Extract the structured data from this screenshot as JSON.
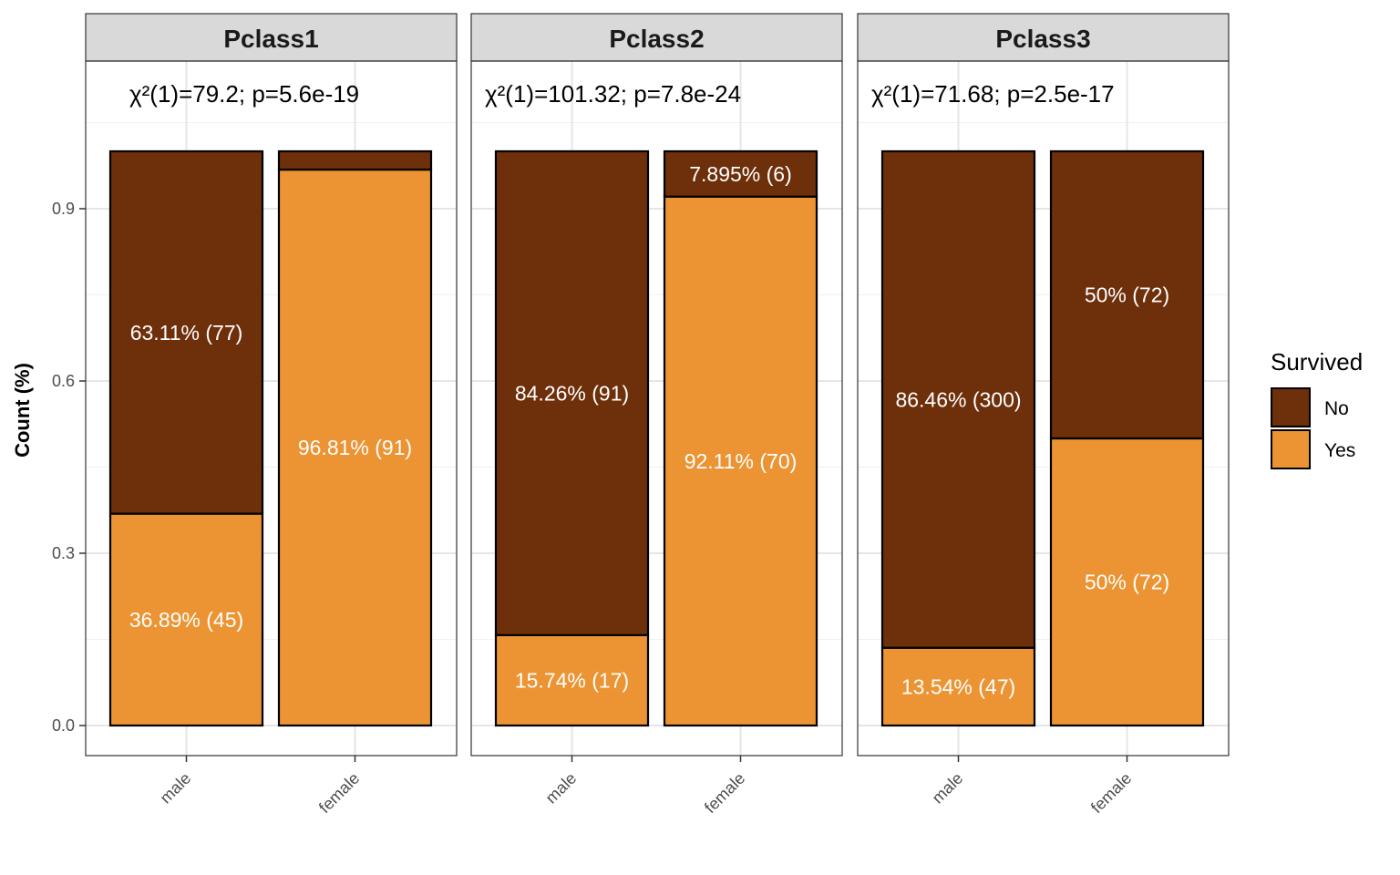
{
  "chart_data": {
    "type": "bar",
    "stacked": true,
    "facet_by": "Pclass",
    "ylabel": "Count (%)",
    "ylim": [
      0,
      1.06
    ],
    "yticks": [
      0.0,
      0.3,
      0.6,
      0.9
    ],
    "ytick_labels": [
      "0.0",
      "0.3",
      "0.6",
      "0.9"
    ],
    "grid": true,
    "colors": {
      "No": "#6e2f0b",
      "Yes": "#ec9433"
    },
    "legend": {
      "title": "Survived",
      "position": "right",
      "entries": [
        "No",
        "Yes"
      ]
    },
    "panels": [
      {
        "title": "Pclass1",
        "annotation": "χ²(1)=79.2; p=5.6e-19",
        "categories": [
          "male",
          "female"
        ],
        "series": [
          {
            "name": "Yes",
            "values": [
              0.3689,
              0.9681
            ],
            "labels": [
              "36.89% (45)",
              "96.81% (91)"
            ]
          },
          {
            "name": "No",
            "values": [
              0.6311,
              0.0319
            ],
            "labels": [
              "63.11% (77)",
              ""
            ]
          }
        ]
      },
      {
        "title": "Pclass2",
        "annotation": "χ²(1)=101.32; p=7.8e-24",
        "categories": [
          "male",
          "female"
        ],
        "series": [
          {
            "name": "Yes",
            "values": [
              0.1574,
              0.9211
            ],
            "labels": [
              "15.74% (17)",
              "92.11% (70)"
            ]
          },
          {
            "name": "No",
            "values": [
              0.8426,
              0.0789
            ],
            "labels": [
              "84.26% (91)",
              "7.895% (6)"
            ]
          }
        ]
      },
      {
        "title": "Pclass3",
        "annotation": "χ²(1)=71.68; p=2.5e-17",
        "categories": [
          "male",
          "female"
        ],
        "series": [
          {
            "name": "Yes",
            "values": [
              0.1354,
              0.5
            ],
            "labels": [
              "13.54% (47)",
              "50% (72)"
            ]
          },
          {
            "name": "No",
            "values": [
              0.8646,
              0.5
            ],
            "labels": [
              "86.46% (300)",
              "50% (72)"
            ]
          }
        ]
      }
    ]
  }
}
